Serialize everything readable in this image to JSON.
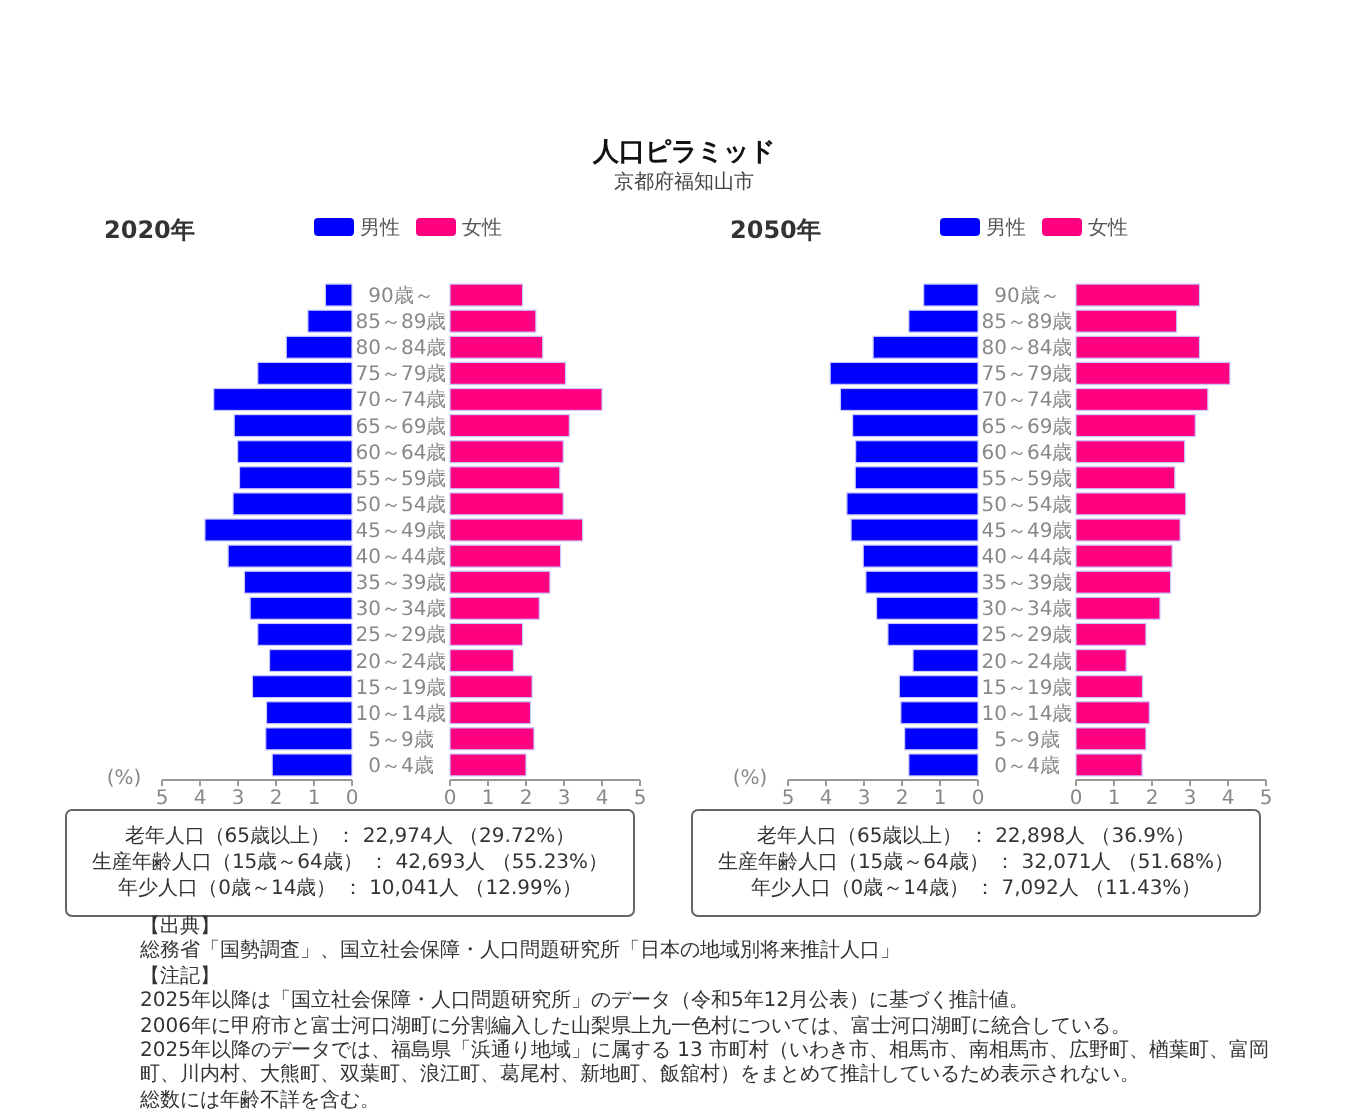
{
  "chart_data": [
    {
      "type": "other",
      "title": "人口ピラミッド",
      "subtitle": "京都府福知山市",
      "annotations": [
        "【出典】",
        "総務省「国勢調査」、国立社会保障・人口問題研究所「日本の地域別将来推計人口」",
        "【注記】",
        "2025年以降は「国立社会保障・人口問題研究所」のデータ（令和5年12月公表）に基づく推計値。",
        "2006年に甲府市と富士河口湖町に分割編入した山梨県上九一色村については、富士河口湖町に統合している。",
        "2025年以降のデータでは、福島県「浜通り地域」に属する 13 市町村（いわき市、相馬市、南相馬市、広野町、楢葉町、富岡町、川内村、大熊町、双葉町、浪江町、葛尾村、新地町、飯舘村）をまとめて推計しているため表示されない。",
        "総数には年齢不詳を含む。"
      ]
    },
    {
      "type": "bar",
      "orientation": "horizontal",
      "title": "2020年",
      "xlabel": "(%)",
      "legend": "top",
      "categories": [
        "90歳～",
        "85～89歳",
        "80～84歳",
        "75～79歳",
        "70～74歳",
        "65～69歳",
        "60～64歳",
        "55～59歳",
        "50～54歳",
        "45～49歳",
        "40～44歳",
        "35～39歳",
        "30～34歳",
        "25～29歳",
        "20～24歳",
        "15～19歳",
        "10～14歳",
        "5～9歳",
        "0～4歳"
      ],
      "xlim": [
        5,
        0
      ],
      "xticks": [
        5,
        4,
        3,
        2,
        1,
        0
      ],
      "series": [
        {
          "name": "男性",
          "color": "#0000ff",
          "values": [
            0.7,
            1.16,
            1.73,
            2.48,
            3.64,
            3.1,
            3.01,
            2.96,
            3.13,
            3.87,
            3.26,
            2.83,
            2.68,
            2.48,
            2.17,
            2.62,
            2.25,
            2.27,
            2.1
          ]
        }
      ],
      "annotations": [
        "老年人口（65歳以上） ： 22,974人 （29.72%）",
        "生産年齢人口（15歳～64歳） ： 42,693人 （55.23%）",
        "年少人口（0歳～14歳） ： 10,041人 （12.99%）"
      ]
    },
    {
      "type": "bar",
      "orientation": "horizontal",
      "legend": "top",
      "categories": [
        null,
        null,
        null,
        null,
        null,
        null,
        null,
        null,
        null,
        null,
        null,
        null,
        null,
        null,
        null,
        null,
        null,
        null,
        null
      ],
      "xlim": [
        0,
        5
      ],
      "xticks": [
        0,
        1,
        2,
        3,
        4,
        5
      ],
      "series": [
        {
          "name": "女性",
          "color": "#ff0080",
          "values": [
            1.91,
            2.26,
            2.44,
            3.04,
            4.0,
            3.14,
            2.98,
            2.89,
            2.98,
            3.49,
            2.91,
            2.63,
            2.35,
            1.91,
            1.67,
            2.16,
            2.12,
            2.21,
            2.0
          ]
        }
      ]
    },
    {
      "type": "bar",
      "orientation": "horizontal",
      "title": "2050年",
      "xlabel": "(%)",
      "legend": "top",
      "categories": [
        "90歳～",
        "85～89歳",
        "80～84歳",
        "75～79歳",
        "70～74歳",
        "65～69歳",
        "60～64歳",
        "55～59歳",
        "50～54歳",
        "45～49歳",
        "40～44歳",
        "35～39歳",
        "30～34歳",
        "25～29歳",
        "20～24歳",
        "15～19歳",
        "10～14歳",
        "5～9歳",
        "0～4歳"
      ],
      "xlim": [
        5,
        0
      ],
      "xticks": [
        5,
        4,
        3,
        2,
        1,
        0
      ],
      "series": [
        {
          "name": "男性",
          "color": "#0000ff",
          "values": [
            1.43,
            1.82,
            2.76,
            3.89,
            3.62,
            3.3,
            3.22,
            3.23,
            3.45,
            3.34,
            3.02,
            2.95,
            2.67,
            2.37,
            1.71,
            2.07,
            2.03,
            1.93,
            1.82
          ]
        }
      ],
      "annotations": [
        "老年人口（65歳以上） ： 22,898人 （36.9%）",
        "生産年齢人口（15歳～64歳） ： 32,071人 （51.68%）",
        "年少人口（0歳～14歳） ： 7,092人 （11.43%）"
      ]
    },
    {
      "type": "bar",
      "orientation": "horizontal",
      "legend": "top",
      "categories": [
        null,
        null,
        null,
        null,
        null,
        null,
        null,
        null,
        null,
        null,
        null,
        null,
        null,
        null,
        null,
        null,
        null,
        null,
        null
      ],
      "xlim": [
        0,
        5
      ],
      "xticks": [
        0,
        1,
        2,
        3,
        4,
        5
      ],
      "series": [
        {
          "name": "女性",
          "color": "#ff0080",
          "values": [
            3.25,
            2.65,
            3.25,
            4.05,
            3.47,
            3.14,
            2.86,
            2.6,
            2.89,
            2.74,
            2.53,
            2.49,
            2.21,
            1.84,
            1.32,
            1.75,
            1.93,
            1.84,
            1.74
          ]
        }
      ]
    }
  ]
}
